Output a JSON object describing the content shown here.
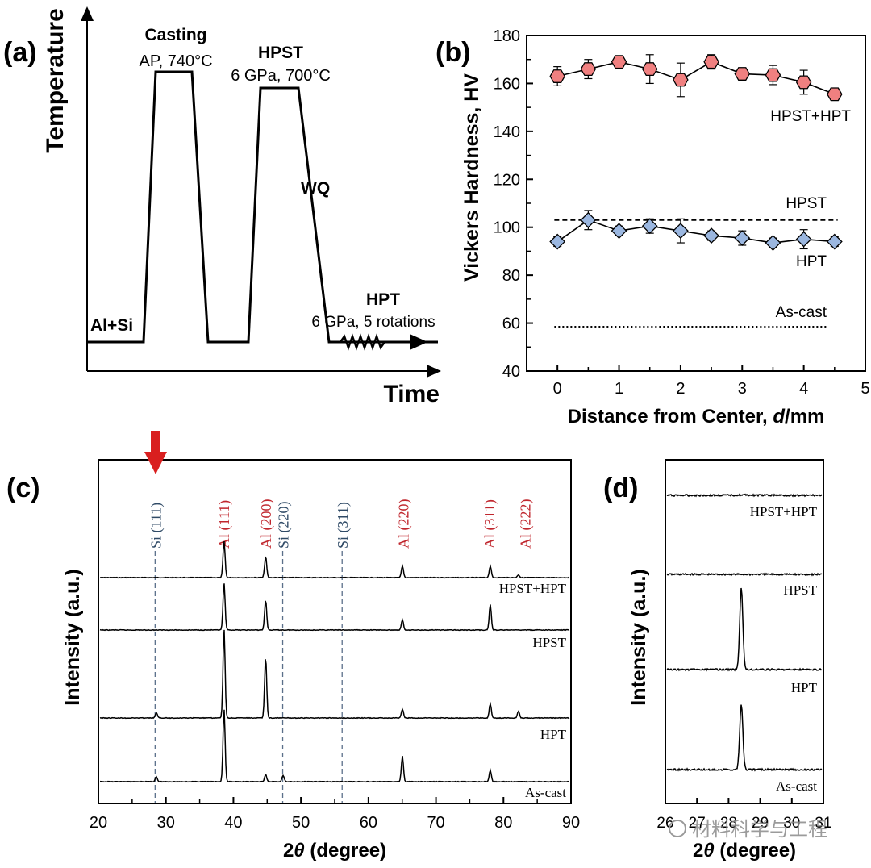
{
  "panels": {
    "a": {
      "tag": "(a)"
    },
    "b": {
      "tag": "(b)"
    },
    "c": {
      "tag": "(c)"
    },
    "d": {
      "tag": "(d)"
    }
  },
  "watermark": {
    "text": "材料科学与工程"
  },
  "chart_data": [
    {
      "panel": "a",
      "type": "line",
      "title": "",
      "xlabel": "Time",
      "ylabel": "Temperature",
      "annotations": {
        "start": "Al+Si",
        "casting_title": "Casting",
        "casting_cond": "AP, 740°C",
        "hpst_title": "HPST",
        "hpst_cond": "6 GPa, 700°C",
        "wq": "WQ",
        "hpt_title": "HPT",
        "hpt_cond": "6 GPa, 5 rotations"
      },
      "x": [
        0,
        70,
        85,
        130,
        150,
        200,
        215,
        262,
        300,
        435
      ],
      "y": [
        0,
        0,
        335,
        335,
        0,
        0,
        315,
        315,
        0,
        0
      ]
    },
    {
      "panel": "b",
      "type": "scatter",
      "xlabel_pre": "Distance from Center, ",
      "xlabel_var": "d",
      "xlabel_post": "/mm",
      "ylabel": "Vickers Hardness, HV",
      "xlim": [
        -0.5,
        5
      ],
      "ylim": [
        40,
        180
      ],
      "xticks": [
        "0",
        "1",
        "2",
        "3",
        "4",
        "5"
      ],
      "yticks": [
        "40",
        "60",
        "80",
        "100",
        "120",
        "140",
        "160",
        "180"
      ],
      "series": [
        {
          "name": "HPST+HPT",
          "marker": "hexagon",
          "color": "#f08080",
          "x": [
            0,
            0.5,
            1,
            1.5,
            2,
            2.5,
            3,
            3.5,
            4,
            4.5
          ],
          "y": [
            163,
            166,
            169,
            166,
            161.5,
            169,
            164,
            163.5,
            160.5,
            155.5
          ],
          "err": [
            4,
            4,
            2,
            6,
            7,
            3,
            2.5,
            4,
            5,
            2
          ]
        },
        {
          "name": "HPT",
          "marker": "diamond",
          "color": "#9bb7e0",
          "x": [
            0,
            0.5,
            1,
            1.5,
            2,
            2.5,
            3,
            3.5,
            4,
            4.5
          ],
          "y": [
            94,
            103,
            98.5,
            100.5,
            98.5,
            96.5,
            95.5,
            93.5,
            95,
            94
          ],
          "err": [
            2,
            4,
            2,
            3,
            5,
            2,
            3,
            2,
            4,
            2
          ]
        }
      ],
      "reference_lines": [
        {
          "name": "HPST",
          "value": 103,
          "style": "dashed"
        },
        {
          "name": "As-cast",
          "value": 58.5,
          "style": "dotted"
        }
      ]
    },
    {
      "panel": "c",
      "type": "line",
      "xlabel_pre": "2",
      "xlabel_var": "θ",
      "xlabel_post": " (degree)",
      "ylabel": "Intensity (a.u.)",
      "xlim": [
        20,
        90
      ],
      "xticks": [
        "20",
        "30",
        "40",
        "50",
        "60",
        "70",
        "80",
        "90"
      ],
      "peak_labels": [
        {
          "label": "Si (111)",
          "x": 28.4,
          "phase": "Si"
        },
        {
          "label": "Al (111)",
          "x": 38.5,
          "phase": "Al"
        },
        {
          "label": "Al (200)",
          "x": 44.7,
          "phase": "Al"
        },
        {
          "label": "Si (220)",
          "x": 47.3,
          "phase": "Si"
        },
        {
          "label": "Si (311)",
          "x": 56.1,
          "phase": "Si"
        },
        {
          "label": "Al (220)",
          "x": 65.1,
          "phase": "Al"
        },
        {
          "label": "Al (311)",
          "x": 78.2,
          "phase": "Al"
        },
        {
          "label": "Al (222)",
          "x": 82.4,
          "phase": "Al"
        }
      ],
      "reference_lines_x": [
        28.4,
        47.3,
        56.1
      ],
      "series": [
        {
          "name": "HPST+HPT",
          "peaks": [
            {
              "x": 38.5,
              "h": 1.0
            },
            {
              "x": 44.7,
              "h": 0.58
            },
            {
              "x": 65.1,
              "h": 0.32
            },
            {
              "x": 78.2,
              "h": 0.32
            },
            {
              "x": 82.4,
              "h": 0.08
            }
          ]
        },
        {
          "name": "HPST",
          "peaks": [
            {
              "x": 38.5,
              "h": 1.0
            },
            {
              "x": 44.7,
              "h": 0.65
            },
            {
              "x": 65.1,
              "h": 0.22
            },
            {
              "x": 78.2,
              "h": 0.55
            }
          ]
        },
        {
          "name": "HPT",
          "peaks": [
            {
              "x": 28.4,
              "h": 0.06
            },
            {
              "x": 38.5,
              "h": 1.0
            },
            {
              "x": 44.7,
              "h": 0.69
            },
            {
              "x": 65.1,
              "h": 0.1
            },
            {
              "x": 78.2,
              "h": 0.16
            },
            {
              "x": 82.4,
              "h": 0.08
            }
          ]
        },
        {
          "name": "As-cast",
          "peaks": [
            {
              "x": 28.4,
              "h": 0.07
            },
            {
              "x": 38.5,
              "h": 1.0
            },
            {
              "x": 44.7,
              "h": 0.1
            },
            {
              "x": 47.3,
              "h": 0.09
            },
            {
              "x": 65.1,
              "h": 0.35
            },
            {
              "x": 78.2,
              "h": 0.16
            }
          ]
        }
      ]
    },
    {
      "panel": "d",
      "type": "line",
      "xlabel_pre": "2",
      "xlabel_var": "θ",
      "xlabel_post": " (degree)",
      "ylabel": "Intensity (a.u.)",
      "xlim": [
        26,
        31
      ],
      "xticks": [
        "26",
        "27",
        "28",
        "29",
        "30",
        "31"
      ],
      "series": [
        {
          "name": "HPST+HPT",
          "peaks": [
            {
              "x": 28.4,
              "h": 0.03
            }
          ]
        },
        {
          "name": "HPST",
          "peaks": []
        },
        {
          "name": "HPT",
          "peaks": [
            {
              "x": 28.4,
              "h": 1.0
            }
          ]
        },
        {
          "name": "As-cast",
          "peaks": [
            {
              "x": 28.4,
              "h": 0.8
            }
          ]
        }
      ]
    }
  ]
}
